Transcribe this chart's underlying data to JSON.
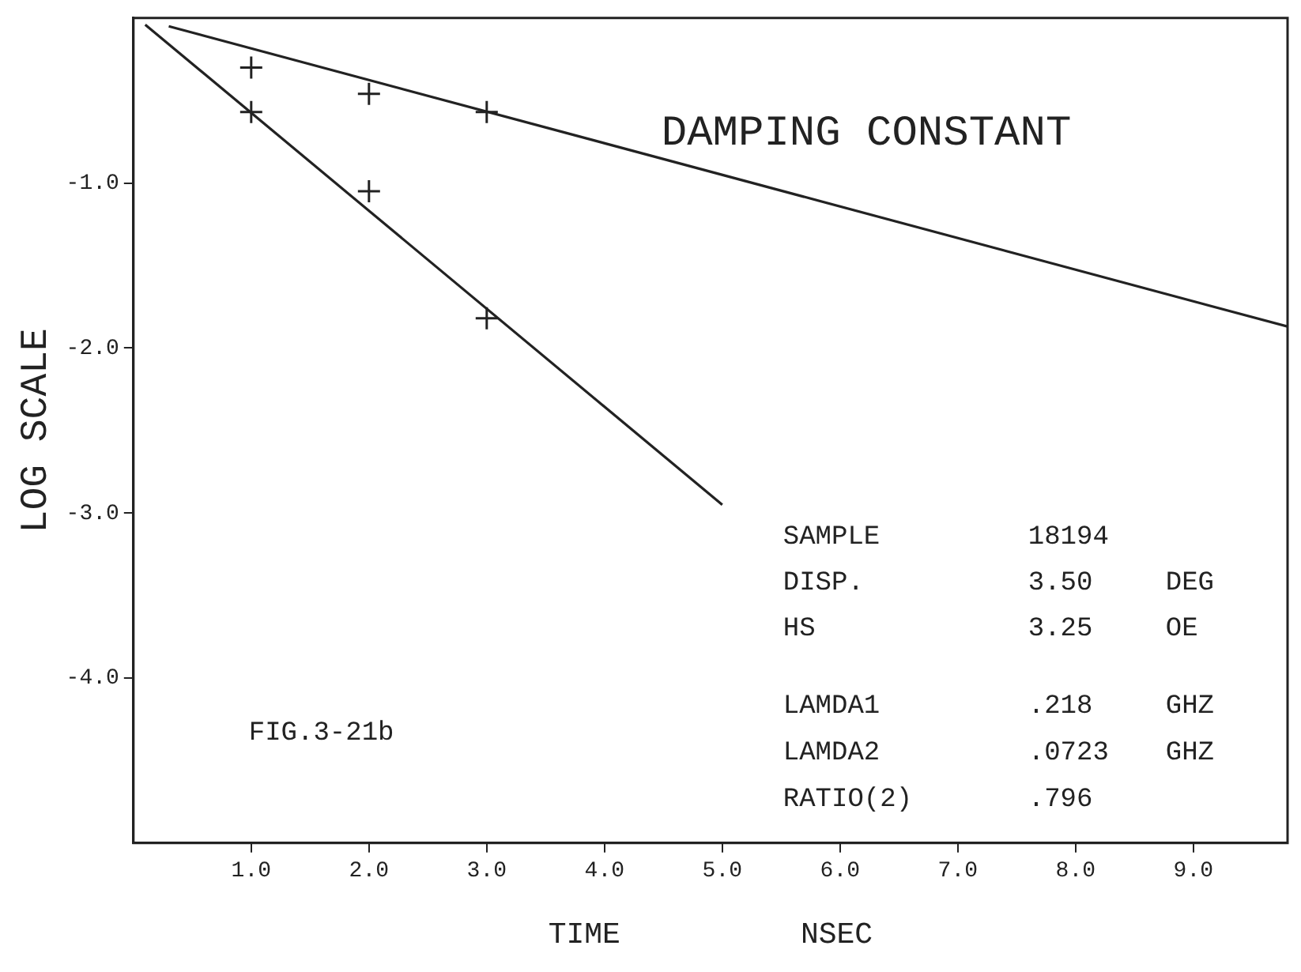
{
  "chart_data": {
    "type": "scatter",
    "title": "DAMPING CONSTANT",
    "xlabel": "TIME          NSEC",
    "ylabel": "LOG SCALE",
    "series": [
      {
        "color": "#222222",
        "marker": "cross",
        "x": [
          1,
          2,
          3
        ],
        "values": [
          -0.3,
          -0.46,
          -0.57
        ]
      },
      {
        "color": "#222222",
        "marker": "cross",
        "x": [
          1,
          2,
          3
        ],
        "values": [
          -0.57,
          -1.05,
          -1.82
        ]
      },
      {
        "type": "line",
        "color": "#222222",
        "marker": "none",
        "line_style": "solid",
        "x": [
          0.3,
          9.8
        ],
        "values": [
          -0.05,
          -1.87
        ]
      },
      {
        "type": "line",
        "color": "#222222",
        "marker": "none",
        "line_style": "solid",
        "x": [
          0.1,
          5.0
        ],
        "values": [
          -0.04,
          -2.95
        ]
      }
    ],
    "xlim": [
      0,
      9.8
    ],
    "ylim": [
      -5,
      0
    ],
    "xticks": [
      {
        "value": 1,
        "label": "1.0"
      },
      {
        "value": 2,
        "label": "2.0"
      },
      {
        "value": 3,
        "label": "3.0"
      },
      {
        "value": 4,
        "label": "4.0"
      },
      {
        "value": 5,
        "label": "5.0"
      },
      {
        "value": 6,
        "label": "6.0"
      },
      {
        "value": 7,
        "label": "7.0"
      },
      {
        "value": 8,
        "label": "8.0"
      },
      {
        "value": 9,
        "label": "9.0"
      }
    ],
    "yticks": [
      {
        "value": -1,
        "label": "-1.0"
      },
      {
        "value": -2,
        "label": "-2.0"
      },
      {
        "value": -3,
        "label": "-3.0"
      },
      {
        "value": -4,
        "label": "-4.0"
      }
    ],
    "grid": false,
    "legend": false,
    "annotations": [
      "FIG.3-21b",
      "SAMPLE\t18194\t",
      "DISP.\t3.50\tDEG",
      "HS\t3.25\tOE",
      "LAMDA1\t.218\tGHZ",
      "LAMDA2\t.0723\tGHZ",
      "RATIO(2)\t.796\t"
    ]
  }
}
